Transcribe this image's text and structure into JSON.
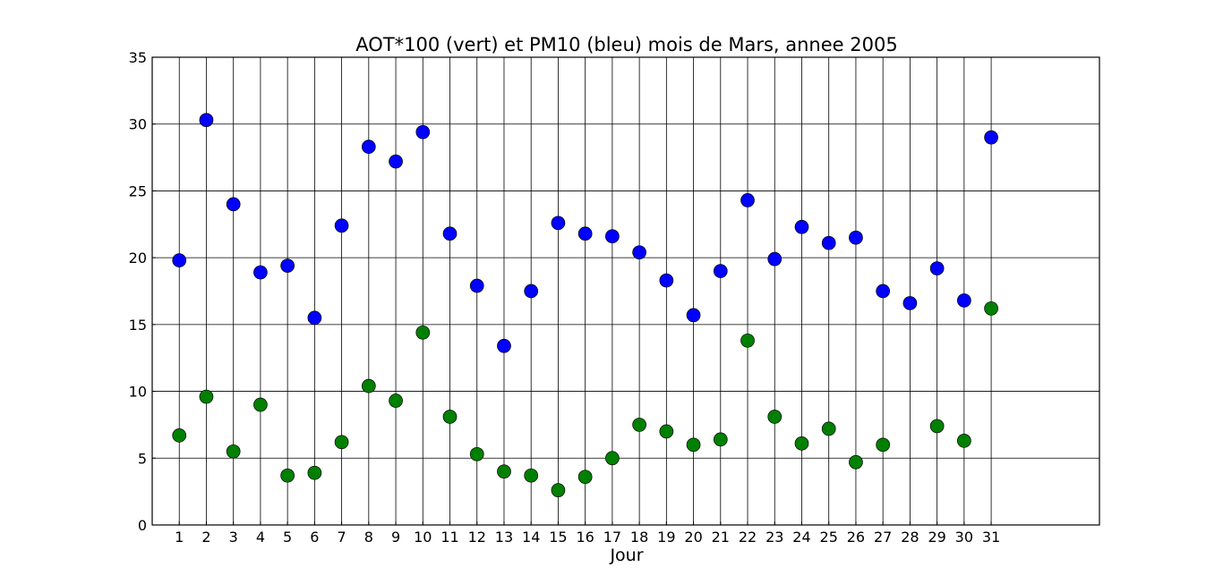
{
  "chart_data": {
    "type": "scatter",
    "title": "AOT*100 (vert) et PM10 (bleu) mois de Mars, annee 2005",
    "xlabel": "Jour",
    "ylabel": "",
    "xlim": [
      0,
      35
    ],
    "ylim": [
      0,
      35
    ],
    "x_ticks": [
      1,
      2,
      3,
      4,
      5,
      6,
      7,
      8,
      9,
      10,
      11,
      12,
      13,
      14,
      15,
      16,
      17,
      18,
      19,
      20,
      21,
      22,
      23,
      24,
      25,
      26,
      27,
      28,
      29,
      30,
      31
    ],
    "y_ticks": [
      0,
      5,
      10,
      15,
      20,
      25,
      30,
      35
    ],
    "grid": true,
    "series": [
      {
        "color": "#0000ff",
        "x": [
          1,
          2,
          3,
          4,
          5,
          6,
          7,
          8,
          9,
          10,
          11,
          12,
          13,
          14,
          15,
          16,
          17,
          18,
          19,
          20,
          21,
          22,
          23,
          24,
          25,
          26,
          27,
          28,
          29,
          30,
          31
        ],
        "values": [
          19.8,
          30.3,
          24.0,
          18.9,
          19.4,
          15.5,
          22.4,
          28.3,
          27.2,
          29.4,
          21.8,
          17.9,
          13.4,
          17.5,
          22.6,
          21.8,
          21.6,
          20.4,
          18.3,
          15.7,
          19.0,
          24.3,
          19.9,
          22.3,
          21.1,
          21.5,
          17.5,
          16.6,
          19.2,
          16.8,
          29.0
        ]
      },
      {
        "color": "#008000",
        "x": [
          1,
          2,
          3,
          4,
          5,
          6,
          7,
          8,
          9,
          10,
          11,
          12,
          13,
          14,
          15,
          16,
          17,
          18,
          19,
          20,
          21,
          22,
          23,
          24,
          25,
          26,
          27,
          29,
          30,
          31
        ],
        "values": [
          6.7,
          9.6,
          5.5,
          9.0,
          3.7,
          3.9,
          6.2,
          10.4,
          9.3,
          14.4,
          8.1,
          5.3,
          4.0,
          3.7,
          2.6,
          3.6,
          5.0,
          7.5,
          7.0,
          6.0,
          6.4,
          13.8,
          8.1,
          6.1,
          7.2,
          4.7,
          6.0,
          7.4,
          6.3,
          16.2
        ]
      }
    ]
  }
}
